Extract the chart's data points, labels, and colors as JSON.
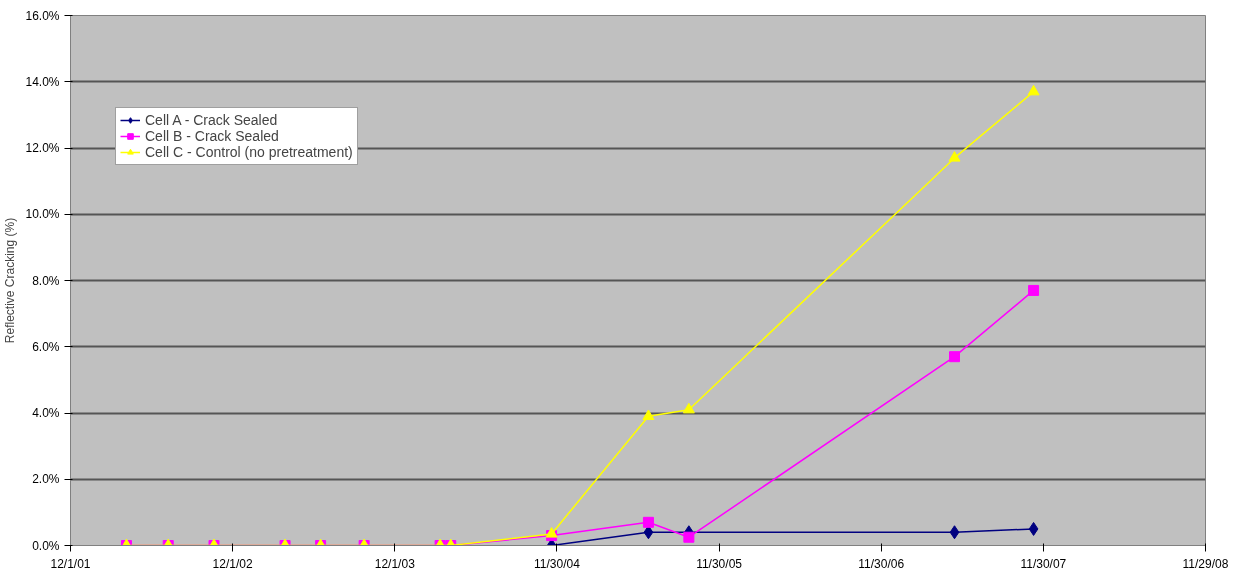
{
  "chart_data": {
    "type": "line",
    "ylabel": "Reflective Cracking (%)",
    "x": [
      "2002-04-06",
      "2002-07-09",
      "2002-10-20",
      "2003-03-29",
      "2003-06-17",
      "2003-09-23",
      "2004-03-12",
      "2004-04-05",
      "2004-11-18",
      "2005-06-24",
      "2005-09-23",
      "2007-05-14",
      "2007-11-08"
    ],
    "series": [
      {
        "name": "Cell A - Crack Sealed",
        "color": "#000080",
        "marker": "diamond",
        "values": [
          null,
          null,
          null,
          null,
          null,
          null,
          null,
          null,
          0,
          0.4,
          0.4,
          0.4,
          0.5
        ]
      },
      {
        "name": "Cell B - Crack Sealed",
        "color": "#ff00ff",
        "marker": "square",
        "values": [
          0,
          0,
          0,
          0,
          0,
          0,
          0,
          0,
          0.3,
          0.7,
          0.25,
          5.7,
          7.7
        ]
      },
      {
        "name": "Cell C - Control (no pretreatment)",
        "color": "#ffff00",
        "marker": "triangle",
        "values": [
          0,
          0,
          0,
          0,
          0,
          0,
          0,
          0,
          0.35,
          3.9,
          4.1,
          11.7,
          13.7
        ]
      }
    ],
    "xlim": [
      "2001-12-01",
      "2008-11-29"
    ],
    "xticks": [
      {
        "value": "2001-12-01",
        "label": "12/1/01"
      },
      {
        "value": "2002-12-01",
        "label": "12/1/02"
      },
      {
        "value": "2003-12-01",
        "label": "12/1/03"
      },
      {
        "value": "2004-11-30",
        "label": "11/30/04"
      },
      {
        "value": "2005-11-30",
        "label": "11/30/05"
      },
      {
        "value": "2006-11-30",
        "label": "11/30/06"
      },
      {
        "value": "2007-11-30",
        "label": "11/30/07"
      },
      {
        "value": "2008-11-29",
        "label": "11/29/08"
      }
    ],
    "ylim": [
      0,
      16
    ],
    "yticks": [
      {
        "value": 0,
        "label": "0.0%"
      },
      {
        "value": 2,
        "label": "2.0%"
      },
      {
        "value": 4,
        "label": "4.0%"
      },
      {
        "value": 6,
        "label": "6.0%"
      },
      {
        "value": 8,
        "label": "8.0%"
      },
      {
        "value": 10,
        "label": "10.0%"
      },
      {
        "value": 12,
        "label": "12.0%"
      },
      {
        "value": 14,
        "label": "14.0%"
      },
      {
        "value": 16,
        "label": "16.0%"
      }
    ],
    "grid": "y",
    "legend": "top left"
  }
}
